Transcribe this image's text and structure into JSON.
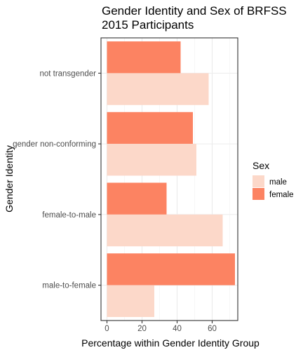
{
  "chart_data": {
    "type": "bar",
    "orientation": "horizontal",
    "title": "Gender Identity and Sex of BRFSS\n2015 Participants",
    "xlabel": "Percentage within Gender Identity Group",
    "ylabel": "Gender Identity",
    "categories": [
      "not transgender",
      "gender non-conforming",
      "female-to-male",
      "male-to-female"
    ],
    "xlim": [
      0,
      75
    ],
    "xticks": [
      0,
      20,
      40,
      60
    ],
    "grid": true,
    "legend": {
      "title": "Sex",
      "position": "right"
    },
    "series": [
      {
        "name": "male",
        "color": "#fcd8c9",
        "values": [
          58,
          51,
          66,
          27
        ]
      },
      {
        "name": "female",
        "color": "#fc8362",
        "values": [
          42,
          49,
          34,
          73
        ]
      }
    ]
  }
}
